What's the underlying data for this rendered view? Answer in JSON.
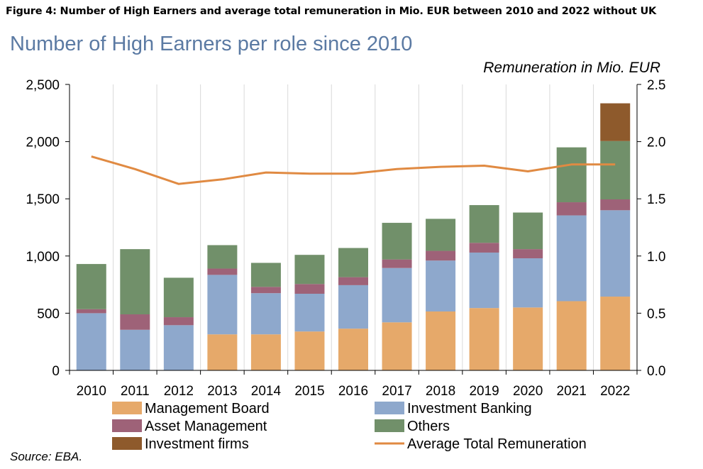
{
  "figure_caption": "Figure 4: Number of High Earners and average total remuneration in Mio. EUR between 2010 and 2022 without UK",
  "source": "Source: EBA.",
  "chart_data": {
    "type": "bar",
    "stacked": true,
    "title": "Number of High Earners per role since 2010",
    "y2label": "Remuneration in Mio. EUR",
    "categories": [
      "2010",
      "2011",
      "2012",
      "2013",
      "2014",
      "2015",
      "2016",
      "2017",
      "2018",
      "2019",
      "2020",
      "2021",
      "2022"
    ],
    "ylim": [
      0,
      2500
    ],
    "y2lim": [
      0,
      2.5
    ],
    "yticks": [
      0,
      500,
      1000,
      1500,
      2000,
      2500
    ],
    "ytick_labels": [
      "0",
      "500",
      "1,000",
      "1,500",
      "2,000",
      "2,500"
    ],
    "y2ticks": [
      0,
      0.5,
      1.0,
      1.5,
      2.0,
      2.5
    ],
    "y2tick_labels": [
      "0.0",
      "0.5",
      "1.0",
      "1.5",
      "2.0",
      "2.5"
    ],
    "grid": "vertical",
    "legend_position": "bottom",
    "series": [
      {
        "name": "Management Board",
        "color": "#e6a96a",
        "values": [
          0,
          0,
          0,
          315,
          315,
          340,
          365,
          420,
          515,
          545,
          550,
          605,
          645
        ]
      },
      {
        "name": "Investment Banking",
        "color": "#8ea8cc",
        "values": [
          500,
          355,
          395,
          520,
          360,
          330,
          380,
          475,
          445,
          485,
          430,
          750,
          755
        ]
      },
      {
        "name": "Asset Management",
        "color": "#9e6278",
        "values": [
          35,
          135,
          70,
          55,
          55,
          85,
          70,
          75,
          85,
          85,
          80,
          115,
          95
        ]
      },
      {
        "name": "Others",
        "color": "#71906a",
        "values": [
          395,
          570,
          345,
          205,
          210,
          255,
          255,
          320,
          280,
          330,
          320,
          480,
          510
        ]
      },
      {
        "name": "Investment firms",
        "color": "#8e5a2c",
        "values": [
          0,
          0,
          0,
          0,
          0,
          0,
          0,
          0,
          0,
          0,
          0,
          0,
          330
        ]
      }
    ],
    "line": {
      "name": "Average Total Remuneration",
      "color": "#e08a42",
      "axis": "right",
      "values": [
        1.87,
        1.76,
        1.63,
        1.67,
        1.73,
        1.72,
        1.72,
        1.76,
        1.78,
        1.79,
        1.74,
        1.8,
        1.8
      ]
    }
  }
}
